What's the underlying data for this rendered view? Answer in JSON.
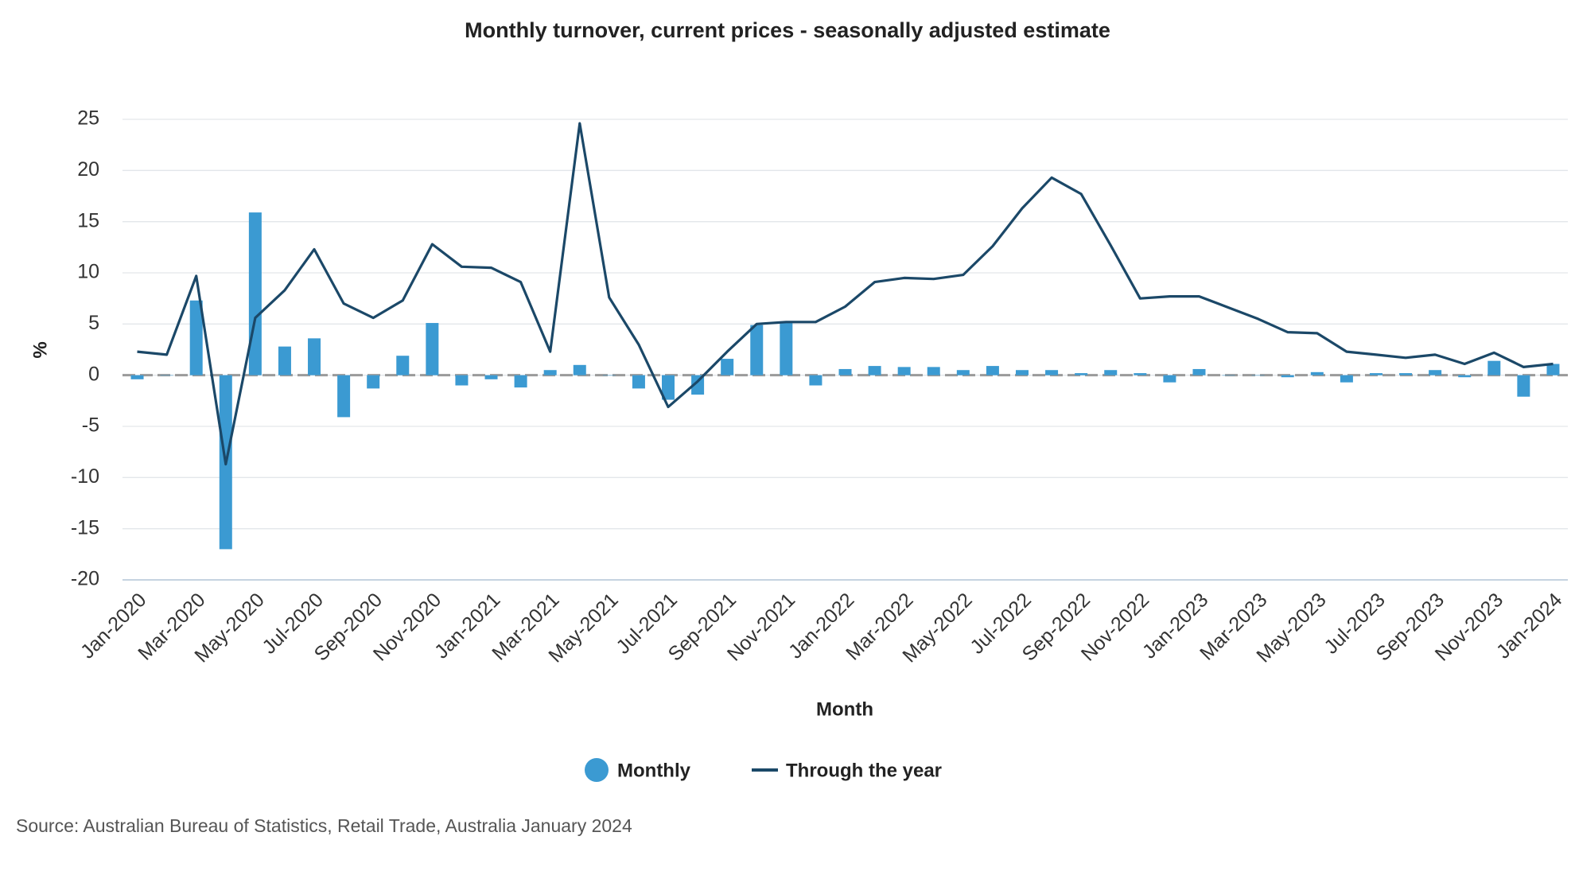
{
  "chart_data": {
    "type": "bar-line",
    "title": "Monthly turnover, current prices - seasonally adjusted estimate",
    "x_label": "Month",
    "y_label": "%",
    "source": "Source: Australian Bureau of Statistics, Retail Trade, Australia January 2024",
    "categories": [
      "Jan-2020",
      null,
      "Mar-2020",
      null,
      "May-2020",
      null,
      "Jul-2020",
      null,
      "Sep-2020",
      null,
      "Nov-2020",
      null,
      "Jan-2021",
      null,
      "Mar-2021",
      null,
      "May-2021",
      null,
      "Jul-2021",
      null,
      "Sep-2021",
      null,
      "Nov-2021",
      null,
      "Jan-2022",
      null,
      "Mar-2022",
      null,
      "May-2022",
      null,
      "Jul-2022",
      null,
      "Sep-2022",
      null,
      "Nov-2022",
      null,
      "Jan-2023",
      null,
      "Mar-2023",
      null,
      "May-2023",
      null,
      "Jul-2023",
      null,
      "Sep-2023",
      null,
      "Nov-2023",
      null,
      "Jan-2024"
    ],
    "series": [
      {
        "name": "Monthly",
        "type": "bar",
        "color": "#3b9ad2",
        "values": [
          -0.4,
          0,
          7.3,
          -17.0,
          15.9,
          2.8,
          3.6,
          -4.1,
          -1.3,
          1.9,
          5.1,
          -1.0,
          -0.4,
          -1.2,
          0.5,
          1.0,
          0,
          -1.3,
          -2.4,
          -1.9,
          1.6,
          4.9,
          5.2,
          -1.0,
          0.6,
          0.9,
          0.8,
          0.8,
          0.5,
          0.9,
          0.5,
          0.5,
          0.2,
          0.5,
          0.2,
          -0.7,
          0.6,
          0,
          0,
          -0.2,
          0.3,
          -0.7,
          0.2,
          0.2,
          0.5,
          -0.2,
          1.4,
          -2.1,
          1.1
        ]
      },
      {
        "name": "Through the year",
        "type": "line",
        "color": "#1b4868",
        "values": [
          2.3,
          2.0,
          9.7,
          -8.7,
          5.6,
          8.3,
          12.3,
          7.0,
          5.6,
          7.3,
          12.8,
          10.6,
          10.5,
          9.1,
          2.3,
          24.6,
          7.6,
          3.0,
          -3.1,
          -0.6,
          2.3,
          5.0,
          5.2,
          5.2,
          6.7,
          9.1,
          9.5,
          9.4,
          9.8,
          12.6,
          16.3,
          19.3,
          17.7,
          12.7,
          7.5,
          7.7,
          7.7,
          6.6,
          5.5,
          4.2,
          4.1,
          2.3,
          2.0,
          1.7,
          2.0,
          1.1,
          2.2,
          0.8,
          1.1
        ]
      }
    ],
    "ylim": [
      -20,
      25
    ],
    "yticks": [
      -20,
      -15,
      -10,
      -5,
      0,
      5,
      10,
      15,
      20,
      25
    ],
    "grid": true
  }
}
